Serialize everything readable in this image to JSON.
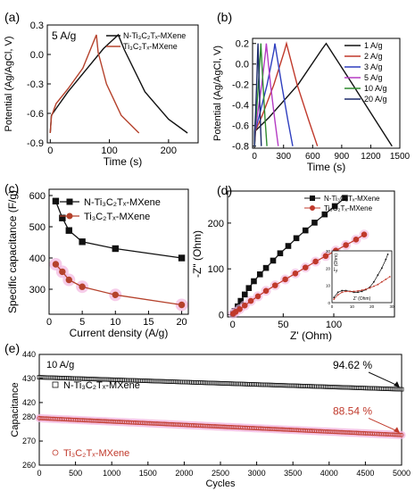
{
  "chart_data": [
    {
      "panel": "(a)",
      "type": "line",
      "annotation": "5 A/g",
      "xlabel": "Time (s)",
      "ylabel": "Potential (Ag/AgCl, V)",
      "xlim": [
        -5,
        250
      ],
      "ylim": [
        -0.9,
        0.3
      ],
      "xticks": [
        0,
        100,
        200
      ],
      "yticks": [
        -0.9,
        -0.6,
        -0.3,
        0.0,
        0.3
      ],
      "ytick_labels": [
        "-0.9",
        "-0.6",
        "-0.3",
        "0.0",
        "0.3"
      ],
      "legend_position": "top-right",
      "series": [
        {
          "name": "N-Ti3C2Tx-MXene",
          "color": "#111111",
          "x": [
            0,
            2,
            10,
            30,
            60,
            90,
            115,
            125,
            160,
            200,
            232
          ],
          "y": [
            -0.8,
            -0.62,
            -0.55,
            -0.38,
            -0.16,
            0.06,
            0.2,
            0.05,
            -0.38,
            -0.66,
            -0.8
          ]
        },
        {
          "name": "Ti3C2Tx-MXene",
          "color": "#b5422c",
          "x": [
            0,
            2,
            10,
            30,
            55,
            78,
            81,
            95,
            120,
            150
          ],
          "y": [
            -0.8,
            -0.63,
            -0.5,
            -0.35,
            -0.14,
            0.2,
            0.02,
            -0.3,
            -0.62,
            -0.8
          ]
        }
      ]
    },
    {
      "panel": "(b)",
      "type": "line",
      "xlabel": "Time (s)",
      "ylabel": "Potential (Ag/AgCl, V)",
      "xlim": [
        -20,
        1500
      ],
      "ylim": [
        -0.82,
        0.25
      ],
      "xticks": [
        0,
        300,
        600,
        900,
        1200,
        1500
      ],
      "yticks": [
        -0.8,
        -0.6,
        -0.4,
        -0.2,
        0.0,
        0.2
      ],
      "ytick_labels": [
        "-0.8",
        "-0.6",
        "-0.4",
        "-0.2",
        "0.0",
        "0.2"
      ],
      "legend_position": "top-right",
      "series": [
        {
          "name": "1 A/g",
          "color": "#111111",
          "x": [
            0,
            10,
            150,
            450,
            700,
            740,
            1000,
            1250,
            1420
          ],
          "y": [
            -0.8,
            -0.65,
            -0.52,
            -0.2,
            0.15,
            0.2,
            -0.18,
            -0.55,
            -0.8
          ]
        },
        {
          "name": "2 A/g",
          "color": "#c0392b",
          "x": [
            0,
            5,
            80,
            200,
            310,
            330,
            440,
            560,
            650
          ],
          "y": [
            -0.8,
            -0.66,
            -0.5,
            -0.2,
            0.13,
            0.2,
            -0.2,
            -0.55,
            -0.8
          ]
        },
        {
          "name": "3 A/g",
          "color": "#2f3fbf",
          "x": [
            0,
            4,
            50,
            130,
            200,
            210,
            280,
            345,
            395
          ],
          "y": [
            -0.8,
            -0.66,
            -0.5,
            -0.2,
            0.13,
            0.2,
            -0.2,
            -0.55,
            -0.8
          ]
        },
        {
          "name": "5 A/g",
          "color": "#b53cc4",
          "x": [
            0,
            3,
            30,
            75,
            115,
            122,
            165,
            210,
            245
          ],
          "y": [
            -0.8,
            -0.66,
            -0.5,
            -0.2,
            0.13,
            0.2,
            -0.2,
            -0.55,
            -0.8
          ]
        },
        {
          "name": "10 A/g",
          "color": "#2e8b2e",
          "x": [
            0,
            2,
            18,
            40,
            62,
            66,
            88,
            110,
            128
          ],
          "y": [
            -0.8,
            -0.66,
            -0.5,
            -0.2,
            0.13,
            0.2,
            -0.2,
            -0.55,
            -0.8
          ]
        },
        {
          "name": "20 A/g",
          "color": "#1b2a6b",
          "x": [
            0,
            1,
            10,
            22,
            33,
            36,
            48,
            60,
            70
          ],
          "y": [
            -0.8,
            -0.66,
            -0.5,
            -0.2,
            0.13,
            0.2,
            -0.2,
            -0.55,
            -0.8
          ]
        }
      ]
    },
    {
      "panel": "(c)",
      "type": "line",
      "xlabel": "Current density (A/g)",
      "ylabel": "Specific capacitance (F/g)",
      "xlim": [
        0,
        21
      ],
      "ylim": [
        220,
        620
      ],
      "xticks": [
        0,
        5,
        10,
        15,
        20
      ],
      "yticks": [
        300,
        400,
        500,
        600
      ],
      "legend_position": "top-right",
      "series": [
        {
          "name": "N-Ti3C2Tx-MXene",
          "color": "#111111",
          "marker": "square",
          "x": [
            1,
            2,
            3,
            5,
            10,
            20
          ],
          "y": [
            582,
            528,
            488,
            452,
            430,
            400
          ]
        },
        {
          "name": "Ti3C2Tx-MXene",
          "color": "#b5422c",
          "marker": "circle",
          "x": [
            1,
            2,
            3,
            5,
            10,
            20
          ],
          "y": [
            380,
            356,
            330,
            308,
            282,
            250
          ]
        }
      ]
    },
    {
      "panel": "(d)",
      "type": "scatter",
      "xlabel": "Z' (Ohm)",
      "ylabel": "-Z\" (Ohm)",
      "xlim": [
        -5,
        160
      ],
      "ylim": [
        -5,
        270
      ],
      "xticks": [
        0,
        50,
        100
      ],
      "yticks": [
        0,
        100,
        200
      ],
      "legend_position": "top-right",
      "series": [
        {
          "name": "N-Ti3C2Tx-MXene",
          "color": "#111111",
          "marker": "square",
          "x": [
            0.5,
            2,
            5,
            8,
            12,
            16,
            21,
            27,
            33,
            40,
            47,
            55,
            63,
            72,
            81,
            91,
            101,
            111
          ],
          "y": [
            2,
            8,
            18,
            30,
            44,
            58,
            73,
            88,
            102,
            118,
            134,
            150,
            167,
            184,
            201,
            219,
            237,
            255
          ]
        },
        {
          "name": "Ti3C2Tx-MXene",
          "color": "#c0392b",
          "marker": "circle",
          "x": [
            0.5,
            3,
            7,
            12,
            18,
            25,
            33,
            42,
            52,
            62,
            72,
            82,
            92,
            102,
            112,
            122,
            130
          ],
          "y": [
            2,
            6,
            12,
            20,
            30,
            40,
            52,
            64,
            77,
            90,
            103,
            116,
            128,
            140,
            152,
            164,
            175
          ]
        }
      ],
      "inset": {
        "xlabel": "Z' (Ohm)",
        "ylabel": "-Z\" (Ohm)",
        "xlim": [
          0,
          30
        ],
        "ylim": [
          0,
          30
        ],
        "xticks": [
          0,
          10,
          20,
          30
        ],
        "yticks": [
          0,
          10,
          20,
          30
        ],
        "series": [
          {
            "color": "#111111",
            "x": [
              1,
              3,
              5,
              7,
              9,
              11,
              13,
              15,
              17,
              19,
              21,
              23,
              25,
              27,
              28
            ],
            "y": [
              3,
              6,
              7,
              7,
              6.5,
              6,
              6,
              6.5,
              7.5,
              9,
              12,
              16,
              20,
              25,
              28
            ]
          },
          {
            "color": "#c0392b",
            "x": [
              1,
              3,
              5,
              7,
              9,
              11,
              13,
              15,
              17,
              19,
              21,
              23,
              25,
              27,
              29
            ],
            "y": [
              2,
              4.5,
              6,
              6.5,
              6.5,
              6.5,
              6.8,
              7.2,
              7.8,
              8.5,
              9.5,
              10.5,
              12,
              13.5,
              15
            ]
          }
        ]
      }
    },
    {
      "panel": "(e)",
      "type": "scatter",
      "annotation": "10 A/g",
      "xlabel": "Cycles",
      "ylabel": "Capacitance",
      "xlim": [
        0,
        5000
      ],
      "ylim": [
        260,
        440
      ],
      "xticks": [
        0,
        500,
        1000,
        1500,
        2000,
        2500,
        3000,
        3500,
        4000,
        4500,
        5000
      ],
      "yticks": [
        260,
        270,
        280,
        420,
        430,
        440
      ],
      "axis_break": [
        283,
        417
      ],
      "legend_position": "left",
      "series": [
        {
          "name": "N-Ti3C2Tx-MXene",
          "color": "#111111",
          "marker": "open-square",
          "x_start": 0,
          "x_end": 5000,
          "y_start": 430.5,
          "y_end": 425.5,
          "retention_label": "94.62 %"
        },
        {
          "name": "Ti3C2Tx-MXene",
          "color": "#c0392b",
          "marker": "open-circle",
          "x_start": 0,
          "x_end": 5000,
          "y_start": 279.5,
          "y_end": 272.5,
          "retention_label": "88.54 %"
        }
      ]
    }
  ]
}
